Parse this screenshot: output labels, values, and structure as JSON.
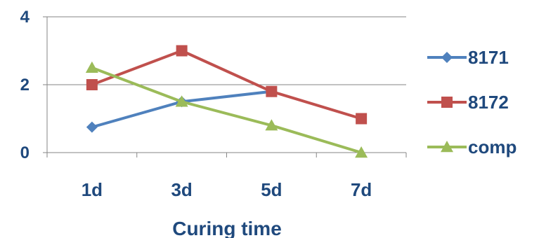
{
  "chart_data": {
    "type": "line",
    "categories": [
      "1d",
      "3d",
      "5d",
      "7d"
    ],
    "series": [
      {
        "name": "8171",
        "values": [
          0.75,
          1.5,
          1.8,
          null
        ],
        "color": "#4F81BD",
        "marker": "diamond"
      },
      {
        "name": "8172",
        "values": [
          2,
          3,
          1.8,
          1
        ],
        "color": "#C0504D",
        "marker": "square"
      },
      {
        "name": "comp",
        "values": [
          2.5,
          1.5,
          0.8,
          0
        ],
        "color": "#9BBB59",
        "marker": "triangle"
      }
    ],
    "title": "",
    "xlabel": "Curing time",
    "ylabel": "",
    "ylim": [
      0,
      4
    ],
    "yticks": [
      0,
      2,
      4
    ],
    "grid": true,
    "legend": "right",
    "text_color": "#1F497D"
  }
}
